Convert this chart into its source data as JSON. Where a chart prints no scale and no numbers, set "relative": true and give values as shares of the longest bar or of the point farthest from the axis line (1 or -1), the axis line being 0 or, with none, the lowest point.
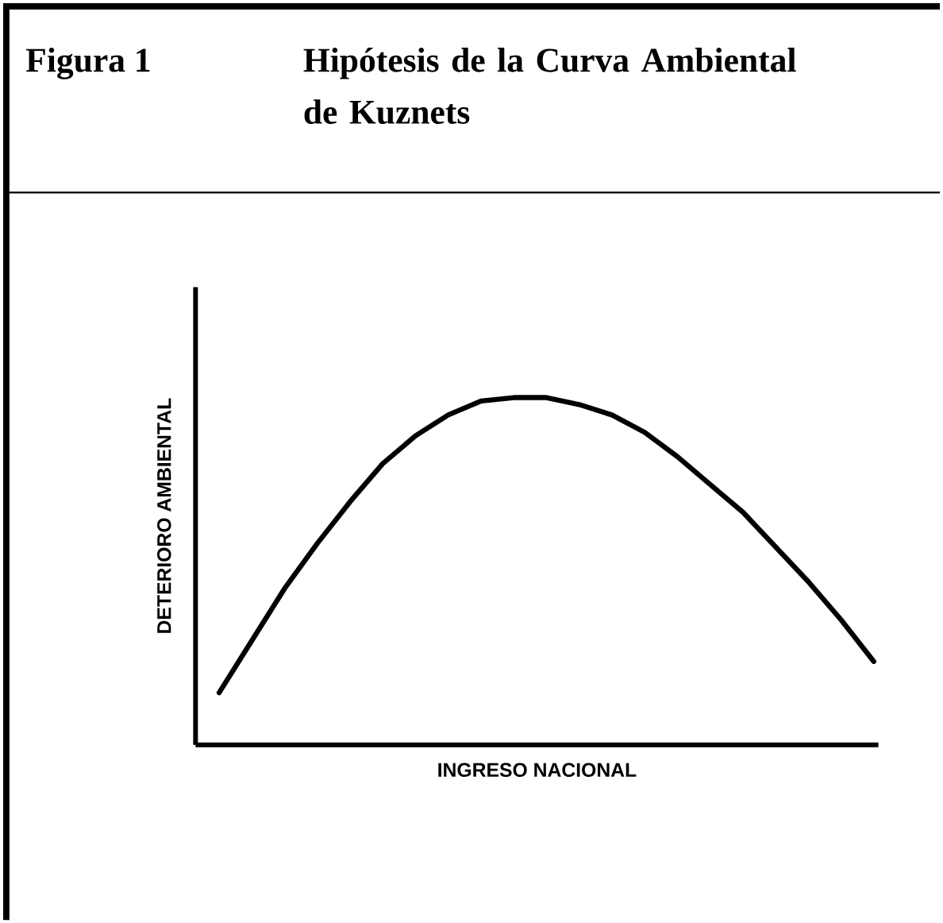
{
  "chart_data": {
    "type": "line",
    "title": "Figura 1",
    "subtitle": "Hipótesis de la Curva Ambiental de Kuznets",
    "xlabel": "INGRESO NACIONAL",
    "ylabel": "DETERIORO AMBIENTAL",
    "relative": true,
    "color": "#000000",
    "categories": [
      null,
      null,
      null,
      null,
      null,
      null,
      null,
      null,
      null,
      null,
      null,
      null,
      null,
      null,
      null,
      null,
      null,
      null,
      null,
      null,
      null
    ],
    "values": [
      0.15,
      0.3,
      0.45,
      0.58,
      0.7,
      0.81,
      0.89,
      0.95,
      0.99,
      1,
      1,
      0.98,
      0.95,
      0.9,
      0.83,
      0.75,
      0.67,
      0.57,
      0.47,
      0.36,
      0.24
    ]
  }
}
